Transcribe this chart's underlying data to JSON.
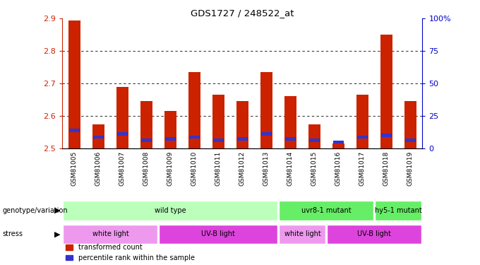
{
  "title": "GDS1727 / 248522_at",
  "samples": [
    "GSM81005",
    "GSM81006",
    "GSM81007",
    "GSM81008",
    "GSM81009",
    "GSM81010",
    "GSM81011",
    "GSM81012",
    "GSM81013",
    "GSM81014",
    "GSM81015",
    "GSM81016",
    "GSM81017",
    "GSM81018",
    "GSM81019"
  ],
  "red_values": [
    2.895,
    2.575,
    2.69,
    2.645,
    2.615,
    2.735,
    2.665,
    2.645,
    2.735,
    2.66,
    2.575,
    2.515,
    2.665,
    2.85,
    2.645
  ],
  "blue_values": [
    2.555,
    2.535,
    2.545,
    2.525,
    2.53,
    2.535,
    2.525,
    2.53,
    2.545,
    2.53,
    2.525,
    2.52,
    2.535,
    2.54,
    2.525
  ],
  "ymin": 2.5,
  "ymax": 2.9,
  "yticks": [
    2.5,
    2.6,
    2.7,
    2.8,
    2.9
  ],
  "right_yticks": [
    0,
    25,
    50,
    75,
    100
  ],
  "right_yticklabels": [
    "0",
    "25",
    "50",
    "75",
    "100%"
  ],
  "bar_color": "#cc2200",
  "blue_color": "#3333cc",
  "genotype_groups": [
    {
      "label": "wild type",
      "start": 0,
      "end": 9,
      "color": "#bbffbb"
    },
    {
      "label": "uvr8-1 mutant",
      "start": 9,
      "end": 13,
      "color": "#66ee66"
    },
    {
      "label": "hy5-1 mutant",
      "start": 13,
      "end": 15,
      "color": "#66ee66"
    }
  ],
  "stress_groups": [
    {
      "label": "white light",
      "start": 0,
      "end": 4,
      "color": "#ee99ee"
    },
    {
      "label": "UV-B light",
      "start": 4,
      "end": 9,
      "color": "#dd44dd"
    },
    {
      "label": "white light",
      "start": 9,
      "end": 11,
      "color": "#ee99ee"
    },
    {
      "label": "UV-B light",
      "start": 11,
      "end": 15,
      "color": "#dd44dd"
    }
  ],
  "bar_width": 0.5,
  "tick_color_left": "#cc2200",
  "tick_color_right": "#0000cc",
  "gray_bg": "#cccccc"
}
